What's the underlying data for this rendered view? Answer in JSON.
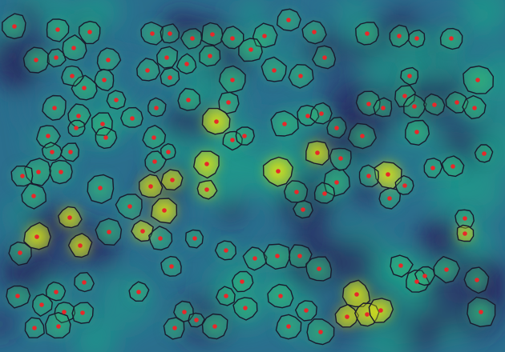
{
  "image": {
    "kind": "segmented-microscopy-overlay",
    "colormap": "viridis",
    "colors": {
      "background_dark": "#2a1f5c",
      "background_mid": "#2b6f8e",
      "background_teal": "#1f9a8a",
      "cell_fill": "#35b779",
      "cell_bright": "#d8e219",
      "outline": "#1a1a2e",
      "centroid": "#e8282a"
    }
  }
}
